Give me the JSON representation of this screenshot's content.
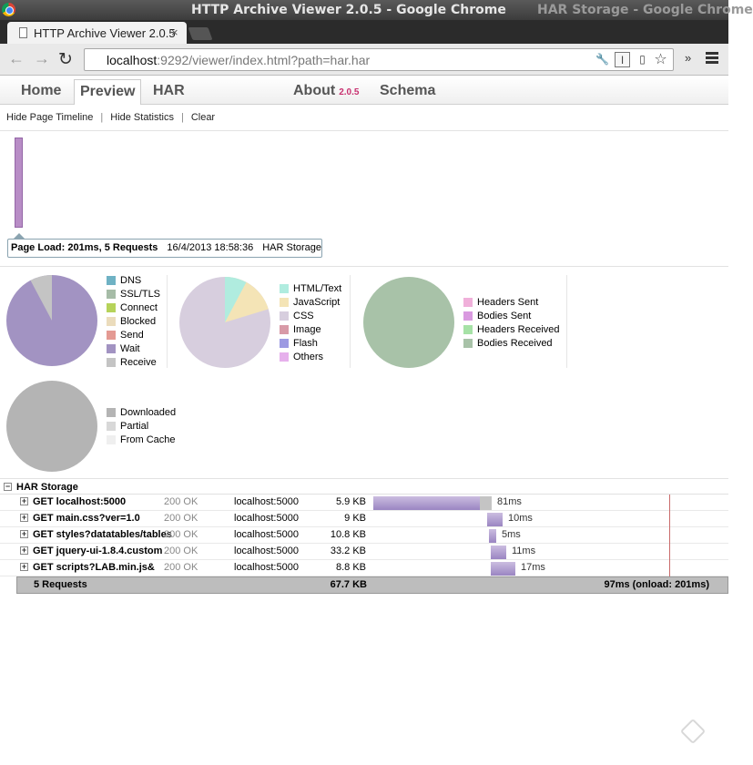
{
  "window": {
    "title": "HTTP Archive Viewer 2.0.5 - Google Chrome",
    "title_right": "HAR Storage - Google Chrome",
    "tab_title": "HTTP Archive Viewer 2.0.5",
    "tab_close": "×"
  },
  "omnibox": {
    "host": "localhost",
    "rest": ":9292/viewer/index.html?path=har.har"
  },
  "toolbar": {
    "back": "←",
    "forward": "→",
    "reload": "↻",
    "more": "»"
  },
  "nav": {
    "tabs": [
      "Home",
      "Preview",
      "HAR"
    ],
    "about": "About",
    "version": "2.0.5",
    "schema": "Schema"
  },
  "subnav": {
    "hide_timeline": "Hide Page Timeline",
    "hide_statistics": "Hide Statistics",
    "clear": "Clear",
    "separator": "|"
  },
  "tooltip": {
    "summary": "Page Load: 201ms, 5 Requests",
    "timestamp": "16/4/2013 18:58:36",
    "page": "HAR Storage"
  },
  "stats": {
    "timing": {
      "legend": [
        {
          "label": "DNS",
          "color": "#6fb2c4"
        },
        {
          "label": "SSL/TLS",
          "color": "#a6bca7"
        },
        {
          "label": "Connect",
          "color": "#b6d35a"
        },
        {
          "label": "Blocked",
          "color": "#ebdcbc"
        },
        {
          "label": "Send",
          "color": "#e49a93"
        },
        {
          "label": "Wait",
          "color": "#a293c2"
        },
        {
          "label": "Receive",
          "color": "#c4c4c4"
        }
      ]
    },
    "content": {
      "legend": [
        {
          "label": "HTML/Text",
          "color": "#b0ecdf"
        },
        {
          "label": "JavaScript",
          "color": "#f4e4b6"
        },
        {
          "label": "CSS",
          "color": "#d7cede"
        },
        {
          "label": "Image",
          "color": "#d89aa7"
        },
        {
          "label": "Flash",
          "color": "#9d9ae2"
        },
        {
          "label": "Others",
          "color": "#e6b0ec"
        }
      ]
    },
    "traffic": {
      "legend": [
        {
          "label": "Headers Sent",
          "color": "#f0b0da"
        },
        {
          "label": "Bodies Sent",
          "color": "#d99ae0"
        },
        {
          "label": "Headers Received",
          "color": "#a6e2a6"
        },
        {
          "label": "Bodies Received",
          "color": "#a8c2a8"
        }
      ]
    },
    "cache": {
      "legend": [
        {
          "label": "Downloaded",
          "color": "#b4b4b4"
        },
        {
          "label": "Partial",
          "color": "#d8d8d8"
        },
        {
          "label": "From Cache",
          "color": "#efefef"
        }
      ]
    }
  },
  "page_group": {
    "toggle": "−",
    "name": "HAR Storage"
  },
  "requests": [
    {
      "toggle": "+",
      "url": "GET localhost:5000",
      "status": "200 OK",
      "domain": "localhost:5000",
      "size": "5.9 KB",
      "time": "81ms"
    },
    {
      "toggle": "+",
      "url": "GET main.css?ver=1.0",
      "status": "200 OK",
      "domain": "localhost:5000",
      "size": "9 KB",
      "time": "10ms"
    },
    {
      "toggle": "+",
      "url": "GET styles?datatables/tables",
      "status": "200 OK",
      "domain": "localhost:5000",
      "size": "10.8 KB",
      "time": "5ms"
    },
    {
      "toggle": "+",
      "url": "GET jquery-ui-1.8.4.custom",
      "status": "200 OK",
      "domain": "localhost:5000",
      "size": "33.2 KB",
      "time": "11ms"
    },
    {
      "toggle": "+",
      "url": "GET scripts?LAB.min.js&",
      "status": "200 OK",
      "domain": "localhost:5000",
      "size": "8.8 KB",
      "time": "17ms"
    }
  ],
  "summary": {
    "count": "5 Requests",
    "total_size": "67.7 KB",
    "total_time": "97ms (onload: 201ms)"
  }
}
